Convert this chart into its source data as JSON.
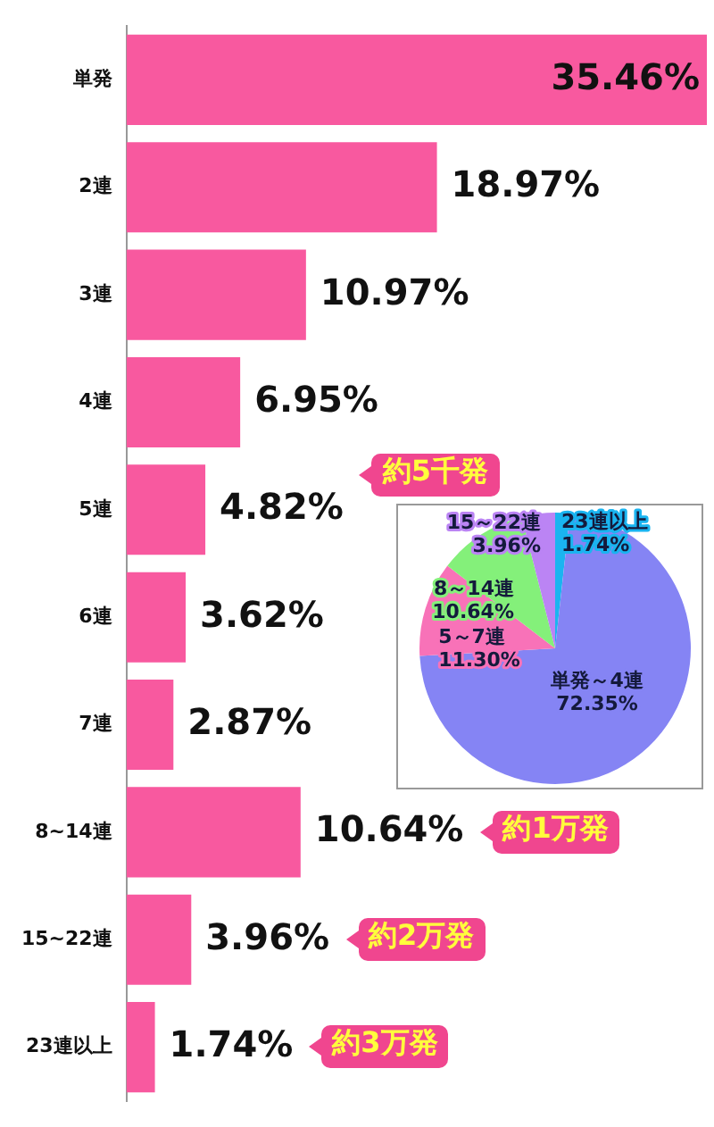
{
  "chart_data": [
    {
      "type": "bar",
      "orientation": "horizontal",
      "categories": [
        "単発",
        "2連",
        "3連",
        "4連",
        "5連",
        "6連",
        "7連",
        "8~14連",
        "15~22連",
        "23連以上"
      ],
      "values": [
        35.46,
        18.97,
        10.97,
        6.95,
        4.82,
        3.62,
        2.87,
        10.64,
        3.96,
        1.74
      ],
      "value_labels": [
        "35.46%",
        "18.97%",
        "10.97%",
        "6.95%",
        "4.82%",
        "3.62%",
        "2.87%",
        "10.64%",
        "3.96%",
        "1.74%"
      ],
      "color": "#f8599f",
      "legend": false,
      "tick_labels": "y",
      "annotations": [
        "約5千発",
        "約1万発",
        "約2万発",
        "約3万発"
      ]
    },
    {
      "type": "pie",
      "categories": [
        "23連以上",
        "単発～4連",
        "5～7連",
        "8～14連",
        "15～22連"
      ],
      "values": [
        1.74,
        72.35,
        11.3,
        10.64,
        3.96
      ],
      "value_labels": [
        "1.74%",
        "72.35%",
        "11.30%",
        "10.64%",
        "3.96%"
      ],
      "colors": [
        "#1ab4f0",
        "#8584f4",
        "#f872b8",
        "#84f07a",
        "#bb84f4"
      ],
      "legend": false
    }
  ]
}
